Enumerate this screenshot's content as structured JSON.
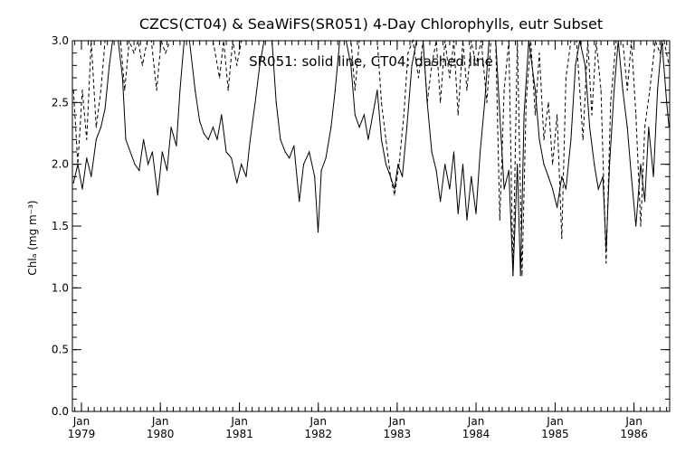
{
  "chart_data": {
    "type": "line",
    "title": "CZCS(CT04) & SeaWiFS(SR051) 4-Day Chlorophylls, eutr Subset",
    "annotation": "SR051: solid line,  CT04: dashed line",
    "ylabel": "Chlₐ (mg m⁻³)",
    "xlabel": "",
    "xlim": [
      "1978-11-20",
      "1986-06-15"
    ],
    "ylim": [
      0.0,
      3.0
    ],
    "grid": false,
    "x_ticks": [
      {
        "month": "Jan",
        "year": "1979",
        "date": "1979-01-01"
      },
      {
        "month": "Jan",
        "year": "1980",
        "date": "1980-01-01"
      },
      {
        "month": "Jan",
        "year": "1981",
        "date": "1981-01-01"
      },
      {
        "month": "Jan",
        "year": "1982",
        "date": "1982-01-01"
      },
      {
        "month": "Jan",
        "year": "1983",
        "date": "1983-01-01"
      },
      {
        "month": "Jan",
        "year": "1984",
        "date": "1984-01-01"
      },
      {
        "month": "Jan",
        "year": "1985",
        "date": "1985-01-01"
      },
      {
        "month": "Jan",
        "year": "1986",
        "date": "1986-01-01"
      }
    ],
    "y_ticks": [
      "0.0",
      "0.5",
      "1.0",
      "1.5",
      "2.0",
      "2.5",
      "3.0"
    ],
    "series": [
      {
        "style": "solid",
        "color": "#000000",
        "points": [
          [
            "1978-11-25",
            1.85
          ],
          [
            "1978-12-15",
            2.0
          ],
          [
            "1979-01-05",
            1.8
          ],
          [
            "1979-01-25",
            2.05
          ],
          [
            "1979-02-15",
            1.9
          ],
          [
            "1979-03-10",
            2.2
          ],
          [
            "1979-04-01",
            2.3
          ],
          [
            "1979-04-20",
            2.45
          ],
          [
            "1979-05-10",
            2.8
          ],
          [
            "1979-05-25",
            3.0
          ],
          [
            "1979-06-20",
            3.0
          ],
          [
            "1979-07-10",
            2.7
          ],
          [
            "1979-07-25",
            2.2
          ],
          [
            "1979-08-15",
            2.1
          ],
          [
            "1979-09-05",
            2.0
          ],
          [
            "1979-09-25",
            1.95
          ],
          [
            "1979-10-15",
            2.2
          ],
          [
            "1979-11-05",
            2.0
          ],
          [
            "1979-11-25",
            2.1
          ],
          [
            "1979-12-20",
            1.75
          ],
          [
            "1980-01-10",
            2.1
          ],
          [
            "1980-02-01",
            1.95
          ],
          [
            "1980-02-20",
            2.3
          ],
          [
            "1980-03-15",
            2.15
          ],
          [
            "1980-04-01",
            2.6
          ],
          [
            "1980-04-20",
            3.0
          ],
          [
            "1980-05-15",
            3.0
          ],
          [
            "1980-06-10",
            2.6
          ],
          [
            "1980-07-01",
            2.35
          ],
          [
            "1980-07-20",
            2.25
          ],
          [
            "1980-08-10",
            2.2
          ],
          [
            "1980-09-01",
            2.3
          ],
          [
            "1980-09-20",
            2.2
          ],
          [
            "1980-10-10",
            2.4
          ],
          [
            "1980-11-01",
            2.1
          ],
          [
            "1980-11-25",
            2.05
          ],
          [
            "1980-12-20",
            1.85
          ],
          [
            "1981-01-10",
            2.0
          ],
          [
            "1981-02-01",
            1.9
          ],
          [
            "1981-02-20",
            2.2
          ],
          [
            "1981-03-15",
            2.5
          ],
          [
            "1981-04-05",
            2.8
          ],
          [
            "1981-04-25",
            3.0
          ],
          [
            "1981-06-01",
            3.0
          ],
          [
            "1981-06-20",
            2.5
          ],
          [
            "1981-07-10",
            2.2
          ],
          [
            "1981-08-01",
            2.1
          ],
          [
            "1981-08-20",
            2.05
          ],
          [
            "1981-09-10",
            2.15
          ],
          [
            "1981-10-05",
            1.7
          ],
          [
            "1981-10-25",
            2.0
          ],
          [
            "1981-11-20",
            2.1
          ],
          [
            "1981-12-15",
            1.9
          ],
          [
            "1981-12-31",
            1.45
          ],
          [
            "1982-01-15",
            1.95
          ],
          [
            "1982-02-05",
            2.05
          ],
          [
            "1982-03-01",
            2.3
          ],
          [
            "1982-03-20",
            2.6
          ],
          [
            "1982-04-10",
            3.0
          ],
          [
            "1982-05-10",
            3.0
          ],
          [
            "1982-06-01",
            2.8
          ],
          [
            "1982-06-20",
            2.4
          ],
          [
            "1982-07-10",
            2.3
          ],
          [
            "1982-08-01",
            2.4
          ],
          [
            "1982-08-20",
            2.2
          ],
          [
            "1982-09-10",
            2.4
          ],
          [
            "1982-10-01",
            2.6
          ],
          [
            "1982-10-20",
            2.2
          ],
          [
            "1982-11-10",
            2.0
          ],
          [
            "1982-12-01",
            1.9
          ],
          [
            "1982-12-20",
            1.8
          ],
          [
            "1983-01-05",
            2.0
          ],
          [
            "1983-01-25",
            1.9
          ],
          [
            "1983-02-15",
            2.3
          ],
          [
            "1983-03-10",
            2.8
          ],
          [
            "1983-04-01",
            3.0
          ],
          [
            "1983-05-01",
            3.0
          ],
          [
            "1983-05-20",
            2.5
          ],
          [
            "1983-06-10",
            2.1
          ],
          [
            "1983-07-01",
            1.95
          ],
          [
            "1983-07-20",
            1.7
          ],
          [
            "1983-08-10",
            2.0
          ],
          [
            "1983-09-01",
            1.8
          ],
          [
            "1983-09-20",
            2.1
          ],
          [
            "1983-10-10",
            1.6
          ],
          [
            "1983-11-01",
            2.0
          ],
          [
            "1983-11-20",
            1.55
          ],
          [
            "1983-12-10",
            1.9
          ],
          [
            "1984-01-01",
            1.6
          ],
          [
            "1984-01-20",
            2.1
          ],
          [
            "1984-02-10",
            2.5
          ],
          [
            "1984-03-01",
            3.0
          ],
          [
            "1984-04-01",
            3.0
          ],
          [
            "1984-04-20",
            2.4
          ],
          [
            "1984-05-10",
            1.8
          ],
          [
            "1984-06-01",
            1.95
          ],
          [
            "1984-06-20",
            1.1
          ],
          [
            "1984-07-10",
            2.0
          ],
          [
            "1984-07-25",
            1.1
          ],
          [
            "1984-08-10",
            2.4
          ],
          [
            "1984-09-01",
            3.0
          ],
          [
            "1984-10-01",
            2.6
          ],
          [
            "1984-10-20",
            2.2
          ],
          [
            "1984-11-10",
            2.0
          ],
          [
            "1984-12-01",
            1.9
          ],
          [
            "1984-12-20",
            1.8
          ],
          [
            "1985-01-10",
            1.65
          ],
          [
            "1985-02-01",
            1.9
          ],
          [
            "1985-02-20",
            1.8
          ],
          [
            "1985-03-15",
            2.2
          ],
          [
            "1985-04-05",
            2.8
          ],
          [
            "1985-04-25",
            3.0
          ],
          [
            "1985-05-20",
            2.8
          ],
          [
            "1985-06-10",
            2.3
          ],
          [
            "1985-07-01",
            2.0
          ],
          [
            "1985-07-20",
            1.8
          ],
          [
            "1985-08-10",
            1.9
          ],
          [
            "1985-08-25",
            1.3
          ],
          [
            "1985-09-10",
            2.0
          ],
          [
            "1985-10-01",
            2.6
          ],
          [
            "1985-10-20",
            3.0
          ],
          [
            "1985-11-10",
            2.6
          ],
          [
            "1985-12-01",
            2.3
          ],
          [
            "1985-12-20",
            1.9
          ],
          [
            "1986-01-10",
            1.5
          ],
          [
            "1986-02-01",
            2.0
          ],
          [
            "1986-02-20",
            1.7
          ],
          [
            "1986-03-10",
            2.3
          ],
          [
            "1986-04-01",
            1.9
          ],
          [
            "1986-04-20",
            2.6
          ],
          [
            "1986-05-10",
            3.0
          ],
          [
            "1986-06-01",
            2.5
          ],
          [
            "1986-06-12",
            2.3
          ]
        ]
      },
      {
        "style": "dashed",
        "color": "#000000",
        "points": [
          [
            "1978-11-25",
            2.6
          ],
          [
            "1978-12-15",
            2.0
          ],
          [
            "1979-01-05",
            2.6
          ],
          [
            "1979-01-25",
            2.2
          ],
          [
            "1979-02-15",
            3.0
          ],
          [
            "1979-03-10",
            2.3
          ],
          [
            "1979-04-01",
            2.6
          ],
          [
            "1979-04-20",
            3.0
          ],
          [
            "1979-05-15",
            3.0
          ],
          [
            "1979-06-10",
            3.0
          ],
          [
            "1979-07-01",
            3.0
          ],
          [
            "1979-07-20",
            2.6
          ],
          [
            "1979-08-10",
            3.0
          ],
          [
            "1979-09-01",
            2.9
          ],
          [
            "1979-09-20",
            3.0
          ],
          [
            "1979-10-10",
            2.8
          ],
          [
            "1979-11-01",
            3.0
          ],
          [
            "1979-11-20",
            3.0
          ],
          [
            "1979-12-15",
            2.6
          ],
          [
            "1980-01-05",
            3.0
          ],
          [
            "1980-01-25",
            2.9
          ],
          [
            "1980-02-15",
            3.0
          ],
          [
            "1980-03-10",
            3.0
          ],
          [
            "1980-04-01",
            3.0
          ],
          [
            "1980-05-01",
            3.0
          ],
          [
            "1980-06-01",
            3.0
          ],
          [
            "1980-07-01",
            3.0
          ],
          [
            "1980-08-01",
            3.0
          ],
          [
            "1980-09-01",
            3.0
          ],
          [
            "1980-10-01",
            2.7
          ],
          [
            "1980-10-20",
            3.0
          ],
          [
            "1980-11-10",
            2.6
          ],
          [
            "1980-12-01",
            3.0
          ],
          [
            "1980-12-20",
            2.8
          ],
          [
            "1981-01-10",
            3.0
          ],
          [
            "1981-02-01",
            3.0
          ],
          [
            "1981-03-01",
            3.0
          ],
          [
            "1981-04-01",
            3.0
          ],
          [
            "1981-05-01",
            3.0
          ],
          [
            "1981-06-01",
            3.0
          ],
          [
            "1981-07-01",
            3.0
          ],
          [
            "1981-08-01",
            3.0
          ],
          [
            "1981-09-01",
            3.0
          ],
          [
            "1981-10-01",
            3.0
          ],
          [
            "1981-11-01",
            3.0
          ],
          [
            "1981-12-01",
            3.0
          ],
          [
            "1982-01-01",
            3.0
          ],
          [
            "1982-02-01",
            3.0
          ],
          [
            "1982-03-01",
            3.0
          ],
          [
            "1982-04-01",
            3.0
          ],
          [
            "1982-05-01",
            3.0
          ],
          [
            "1982-06-01",
            3.0
          ],
          [
            "1982-06-20",
            2.6
          ],
          [
            "1982-07-10",
            3.0
          ],
          [
            "1982-08-01",
            3.0
          ],
          [
            "1982-09-01",
            3.0
          ],
          [
            "1982-10-01",
            3.0
          ],
          [
            "1982-10-20",
            2.5
          ],
          [
            "1982-11-10",
            2.2
          ],
          [
            "1982-12-01",
            1.9
          ],
          [
            "1982-12-20",
            1.75
          ],
          [
            "1983-01-10",
            2.0
          ],
          [
            "1983-02-01",
            2.4
          ],
          [
            "1983-02-20",
            2.9
          ],
          [
            "1983-03-15",
            3.0
          ],
          [
            "1983-04-10",
            2.7
          ],
          [
            "1983-05-01",
            3.0
          ],
          [
            "1983-05-20",
            2.5
          ],
          [
            "1983-06-10",
            2.8
          ],
          [
            "1983-07-01",
            3.0
          ],
          [
            "1983-07-20",
            2.5
          ],
          [
            "1983-08-10",
            3.0
          ],
          [
            "1983-09-01",
            2.7
          ],
          [
            "1983-09-20",
            3.0
          ],
          [
            "1983-10-10",
            2.4
          ],
          [
            "1983-11-01",
            3.0
          ],
          [
            "1983-11-20",
            2.6
          ],
          [
            "1983-12-10",
            3.0
          ],
          [
            "1984-01-01",
            2.8
          ],
          [
            "1984-01-25",
            3.0
          ],
          [
            "1984-02-20",
            2.5
          ],
          [
            "1984-03-10",
            3.0
          ],
          [
            "1984-04-01",
            3.0
          ],
          [
            "1984-04-20",
            1.55
          ],
          [
            "1984-05-10",
            2.6
          ],
          [
            "1984-06-01",
            3.0
          ],
          [
            "1984-06-20",
            1.1
          ],
          [
            "1984-07-10",
            3.0
          ],
          [
            "1984-08-01",
            1.1
          ],
          [
            "1984-08-20",
            2.5
          ],
          [
            "1984-09-10",
            3.0
          ],
          [
            "1984-10-01",
            2.4
          ],
          [
            "1984-10-20",
            2.9
          ],
          [
            "1984-11-10",
            2.2
          ],
          [
            "1984-12-01",
            2.5
          ],
          [
            "1984-12-20",
            2.0
          ],
          [
            "1985-01-10",
            2.4
          ],
          [
            "1985-02-01",
            1.4
          ],
          [
            "1985-02-20",
            2.7
          ],
          [
            "1985-03-15",
            3.0
          ],
          [
            "1985-04-10",
            3.0
          ],
          [
            "1985-05-10",
            2.2
          ],
          [
            "1985-06-01",
            3.0
          ],
          [
            "1985-06-20",
            2.4
          ],
          [
            "1985-07-10",
            3.0
          ],
          [
            "1985-08-01",
            2.6
          ],
          [
            "1985-08-25",
            1.2
          ],
          [
            "1985-09-15",
            2.5
          ],
          [
            "1985-10-10",
            3.0
          ],
          [
            "1985-11-10",
            3.0
          ],
          [
            "1985-12-01",
            2.6
          ],
          [
            "1985-12-20",
            3.0
          ],
          [
            "1986-01-10",
            2.4
          ],
          [
            "1986-02-01",
            1.5
          ],
          [
            "1986-02-20",
            2.3
          ],
          [
            "1986-03-15",
            2.6
          ],
          [
            "1986-04-10",
            3.0
          ],
          [
            "1986-05-01",
            2.9
          ],
          [
            "1986-05-20",
            3.0
          ],
          [
            "1986-06-12",
            2.8
          ]
        ]
      }
    ]
  }
}
